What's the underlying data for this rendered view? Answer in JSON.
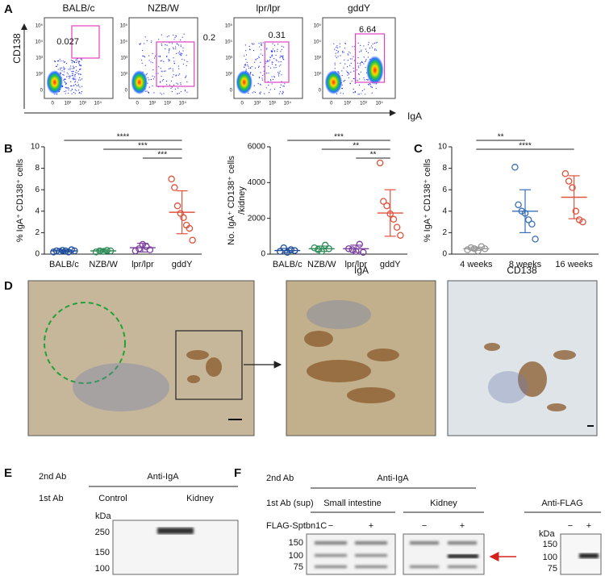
{
  "panel_labels": [
    "A",
    "B",
    "C",
    "D",
    "E",
    "F"
  ],
  "panel_a": {
    "titles": [
      "BALB/c",
      "NZB/W",
      "lpr/lpr",
      "gddY"
    ],
    "gates": [
      "0.027",
      "0.2",
      "0.31",
      "6.64"
    ],
    "y_label": "CD138",
    "x_label": "IgA",
    "tick_labels": [
      "0",
      "10²",
      "10³",
      "10⁴",
      "10⁵"
    ]
  },
  "chart_data": [
    {
      "type": "dot",
      "ylabel": [
        "% IgA⁺ CD138⁺ cells"
      ],
      "categories": [
        "BALB/c",
        "NZB/W",
        "lpr/lpr",
        "gddY"
      ],
      "points": [
        [
          0.2,
          0.3,
          0.25,
          0.35,
          0.3,
          0.2,
          0.4,
          0.3
        ],
        [
          0.2,
          0.3,
          0.25,
          0.35,
          0.3
        ],
        [
          0.3,
          0.5,
          0.9,
          0.7,
          0.4
        ],
        [
          7.0,
          6.2,
          4.5,
          3.8,
          3.4,
          2.7,
          2.4,
          1.3
        ]
      ],
      "means": [
        0.3,
        0.3,
        0.6,
        3.9
      ],
      "sds": [
        0.1,
        0.15,
        0.4,
        2.0
      ],
      "colors": [
        "#1f4e9c",
        "#2e8b57",
        "#7b3f9e",
        "#e0523c"
      ],
      "ylim": [
        0,
        10
      ],
      "yticks": [
        0,
        2,
        4,
        6,
        8,
        10
      ],
      "annotations": [
        "****",
        "***",
        "***"
      ]
    },
    {
      "type": "dot",
      "ylabel": [
        "No. IgA⁺ CD138⁺ cells",
        "/kidney"
      ],
      "categories": [
        "BALB/c",
        "NZB/W",
        "lpr/lpr",
        "gddY"
      ],
      "points": [
        [
          150,
          350,
          100,
          250,
          200
        ],
        [
          350,
          250,
          150,
          500,
          300
        ],
        [
          300,
          250,
          150,
          550,
          100
        ],
        [
          5100,
          2950,
          2700,
          2250,
          1950,
          1500,
          1050
        ]
      ],
      "means": [
        200,
        300,
        300,
        2300
      ],
      "sds": [
        120,
        150,
        200,
        1300
      ],
      "colors": [
        "#1f4e9c",
        "#2e8b57",
        "#7b3f9e",
        "#e0523c"
      ],
      "ylim": [
        0,
        6000
      ],
      "yticks": [
        0,
        2000,
        4000,
        6000
      ],
      "annotations": [
        "***",
        "**",
        "**"
      ]
    },
    {
      "type": "dot",
      "ylabel": [
        "% IgA⁺ CD138⁺ cells"
      ],
      "categories": [
        "4 weeks",
        "8 weeks",
        "16 weeks"
      ],
      "points": [
        [
          0.4,
          0.6,
          0.5,
          0.3,
          0.7,
          0.5
        ],
        [
          8.1,
          4.6,
          4.0,
          3.8,
          3.2,
          2.8,
          1.4
        ],
        [
          7.5,
          6.8,
          6.2,
          4.0,
          3.2,
          3.0
        ]
      ],
      "means": [
        0.5,
        4.0,
        5.3
      ],
      "sds": [
        0.15,
        2.0,
        2.0
      ],
      "colors": [
        "#999999",
        "#3a6fb7",
        "#e0523c"
      ],
      "ylim": [
        0,
        10
      ],
      "yticks": [
        0,
        2,
        4,
        6,
        8,
        10
      ],
      "annotations": [
        "**",
        "****"
      ]
    }
  ],
  "panel_d": {
    "titles": [
      "IgA",
      "CD138"
    ]
  },
  "panel_e": {
    "second_ab": "2nd Ab",
    "antibody": "Anti-IgA",
    "first_ab": "1st Ab",
    "lanes": [
      "Control",
      "Kidney"
    ],
    "unit": "kDa",
    "markers": [
      "250",
      "150",
      "100"
    ]
  },
  "panel_f": {
    "second_ab": "2nd Ab",
    "antibody": "Anti-IgA",
    "first_ab": "1st Ab (sup)",
    "groups": [
      "Small intestine",
      "Kidney",
      "Anti-FLAG"
    ],
    "construct": "FLAG-Sptbn1C",
    "signs": [
      "−",
      "+"
    ],
    "unit": "kDa",
    "markers": [
      "150",
      "100",
      "75"
    ]
  }
}
